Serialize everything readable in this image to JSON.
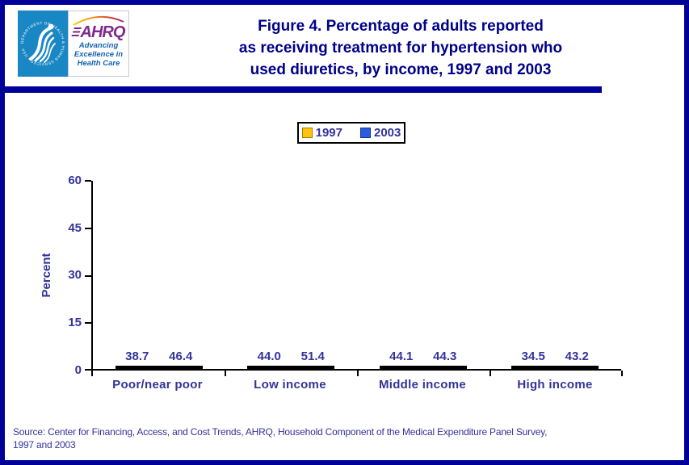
{
  "header": {
    "title_lines": [
      "Figure 4. Percentage of adults reported",
      "as receiving treatment for hypertension who",
      "used diuretics, by income, 1997 and 2003"
    ],
    "logo": {
      "seal_text": "DEPARTMENT OF HEALTH & HUMAN SERVICES • USA",
      "ahrq_word": "AHRQ",
      "tagline_lines": [
        "Advancing",
        "Excellence in",
        "Health Care"
      ]
    }
  },
  "legend": {
    "items": [
      {
        "label": "1997",
        "color": "#FFC30D"
      },
      {
        "label": "2003",
        "color": "#2B5BE2"
      }
    ]
  },
  "chart_data": {
    "type": "bar",
    "title": "Figure 4. Percentage of adults reported as receiving treatment for hypertension who used diuretics, by income, 1997 and 2003",
    "categories": [
      "Poor/near poor",
      "Low income",
      "Middle income",
      "High income"
    ],
    "series": [
      {
        "name": "1997",
        "color": "#FFC30D",
        "values": [
          38.7,
          44.0,
          44.1,
          34.5
        ],
        "labels": [
          "38.7",
          "44.0",
          "44.1",
          "34.5"
        ]
      },
      {
        "name": "2003",
        "color": "#2B5BE2",
        "values": [
          46.4,
          51.4,
          44.3,
          43.2
        ],
        "labels": [
          "46.4",
          "51.4",
          "44.3",
          "43.2"
        ]
      }
    ],
    "xlabel": "",
    "ylabel": "Percent",
    "ylim": [
      0,
      60
    ],
    "yticks": [
      "0",
      "15",
      "30",
      "45",
      "60"
    ],
    "grid": false,
    "legend_position": "top-center"
  },
  "source": {
    "line1": "Source: Center for Financing, Access, and Cost Trends, AHRQ, Household Component of the Medical Expenditure Panel Survey,",
    "line2": "1997 and 2003"
  },
  "colors": {
    "page_border": "#000099",
    "title_text": "#00008B",
    "chart_text": "#333399",
    "bar_1997": "#FFC30D",
    "bar_2003": "#2B5BE2",
    "seal_blue": "#1A87C5",
    "ahrq_purple": "#7D2A8C",
    "tagline_blue": "#1464AE"
  }
}
